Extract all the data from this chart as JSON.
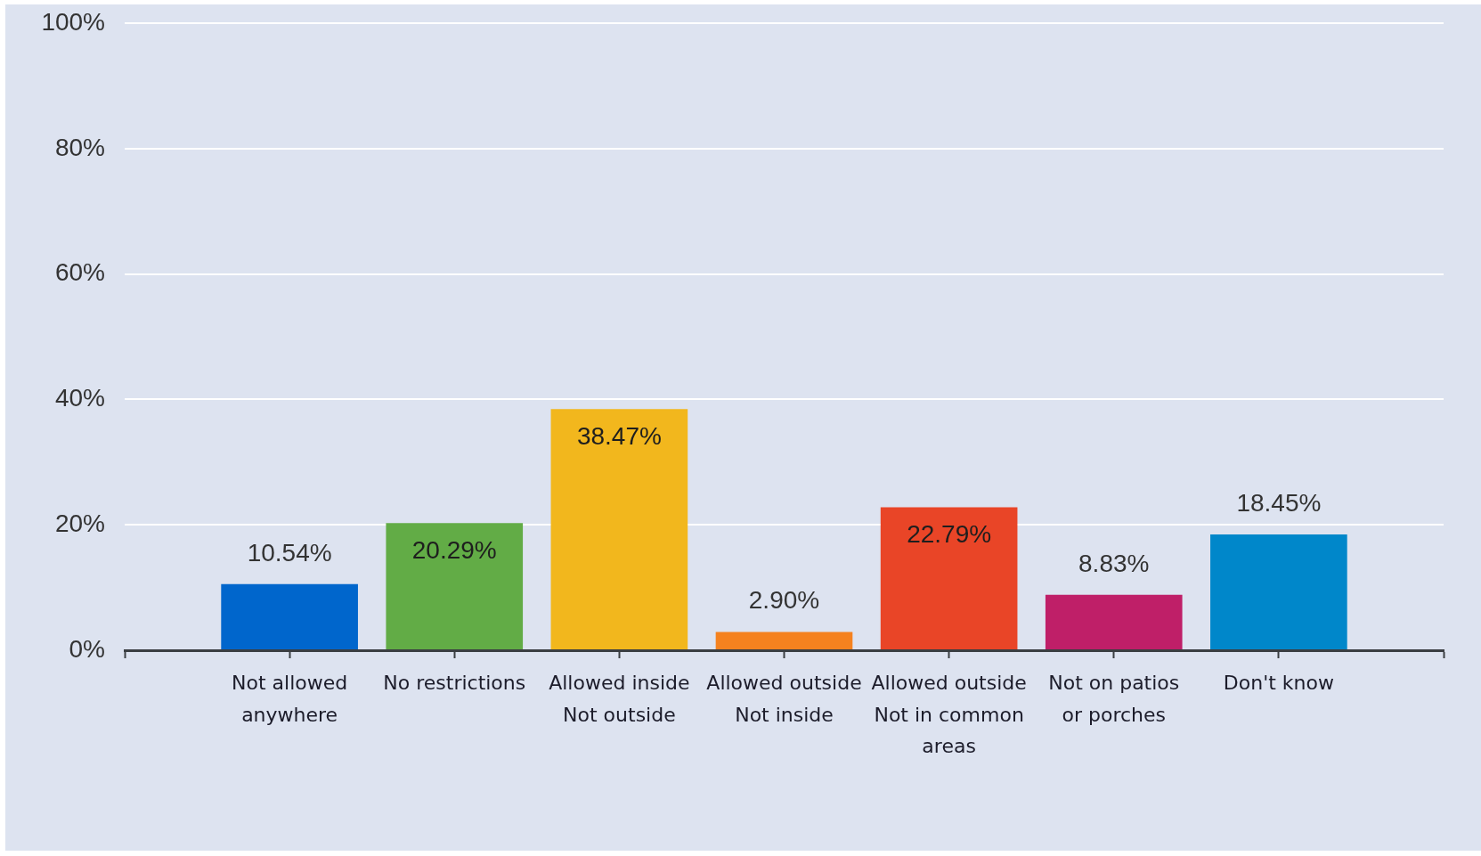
{
  "chart_data": {
    "type": "bar",
    "categories": [
      "Not allowed\nanywhere",
      "No restrictions",
      "Allowed inside\nNot outside",
      "Allowed outside\nNot inside",
      "Allowed outside\nNot in common\nareas",
      "Not on patios\nor porches",
      "Don't know"
    ],
    "values": [
      10.54,
      20.29,
      38.47,
      2.9,
      22.79,
      8.83,
      18.45
    ],
    "colors": [
      "#0066cc",
      "#62ac46",
      "#f2b71d",
      "#f5821f",
      "#e94527",
      "#bf1f68",
      "#0087ca"
    ],
    "value_labels": [
      "10.54%",
      "20.29%",
      "38.47%",
      "2.90%",
      "22.79%",
      "8.83%",
      "18.45%"
    ],
    "ylim": [
      0,
      100
    ],
    "yticks": [
      {
        "value": 0,
        "label": "0%"
      },
      {
        "value": 20,
        "label": "20%"
      },
      {
        "value": 40,
        "label": "40%"
      },
      {
        "value": 60,
        "label": "60%"
      },
      {
        "value": 80,
        "label": "80%"
      },
      {
        "value": 100,
        "label": "100%"
      }
    ],
    "grid": "y"
  }
}
